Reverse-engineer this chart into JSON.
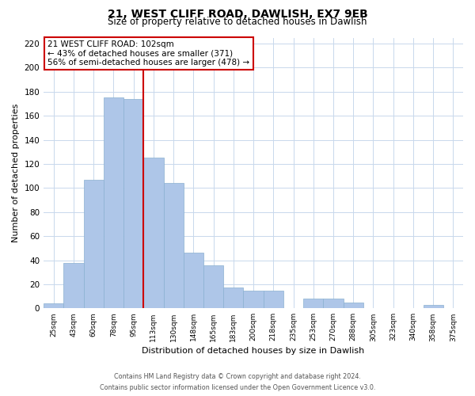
{
  "title": "21, WEST CLIFF ROAD, DAWLISH, EX7 9EB",
  "subtitle": "Size of property relative to detached houses in Dawlish",
  "xlabel": "Distribution of detached houses by size in Dawlish",
  "ylabel": "Number of detached properties",
  "bar_labels": [
    "25sqm",
    "43sqm",
    "60sqm",
    "78sqm",
    "95sqm",
    "113sqm",
    "130sqm",
    "148sqm",
    "165sqm",
    "183sqm",
    "200sqm",
    "218sqm",
    "235sqm",
    "253sqm",
    "270sqm",
    "288sqm",
    "305sqm",
    "323sqm",
    "340sqm",
    "358sqm",
    "375sqm"
  ],
  "bar_heights": [
    4,
    38,
    107,
    175,
    174,
    125,
    104,
    46,
    36,
    17,
    15,
    15,
    0,
    8,
    8,
    5,
    0,
    0,
    0,
    3,
    0
  ],
  "bar_color": "#aec6e8",
  "bar_edge_color": "#8ab0d0",
  "vline_color": "#cc0000",
  "annotation_title": "21 WEST CLIFF ROAD: 102sqm",
  "annotation_line1": "← 43% of detached houses are smaller (371)",
  "annotation_line2": "56% of semi-detached houses are larger (478) →",
  "annotation_box_edgecolor": "#cc0000",
  "ylim": [
    0,
    225
  ],
  "yticks": [
    0,
    20,
    40,
    60,
    80,
    100,
    120,
    140,
    160,
    180,
    200,
    220
  ],
  "footer_line1": "Contains HM Land Registry data © Crown copyright and database right 2024.",
  "footer_line2": "Contains public sector information licensed under the Open Government Licence v3.0."
}
